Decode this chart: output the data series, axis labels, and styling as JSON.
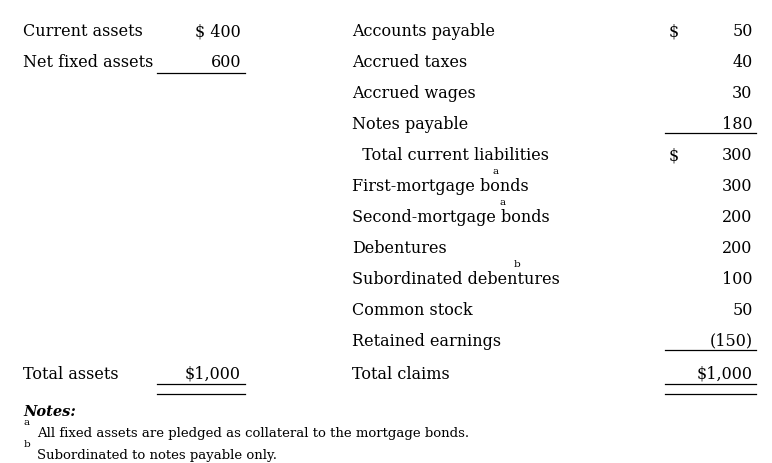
{
  "background_color": "#ffffff",
  "left_section": {
    "items": [
      {
        "label": "Current assets",
        "value": "$ 400"
      },
      {
        "label": "Net fixed assets",
        "value": "600"
      }
    ],
    "total_label": "Total assets",
    "total_value": "$1,000"
  },
  "right_section": {
    "items": [
      {
        "label": "Accounts payable",
        "value": "50",
        "dollar": true,
        "underline": false,
        "superscript": ""
      },
      {
        "label": "Accrued taxes",
        "value": "40",
        "dollar": false,
        "underline": false,
        "superscript": ""
      },
      {
        "label": "Accrued wages",
        "value": "30",
        "dollar": false,
        "underline": false,
        "superscript": ""
      },
      {
        "label": "Notes payable",
        "value": "180",
        "dollar": false,
        "underline": true,
        "superscript": ""
      },
      {
        "label": "  Total current liabilities",
        "value": "300",
        "dollar": true,
        "underline": false,
        "superscript": ""
      },
      {
        "label": "First-mortgage bonds",
        "value": "300",
        "dollar": false,
        "underline": false,
        "superscript": "a"
      },
      {
        "label": "Second-mortgage bonds",
        "value": "200",
        "dollar": false,
        "underline": false,
        "superscript": "a"
      },
      {
        "label": "Debentures",
        "value": "200",
        "dollar": false,
        "underline": false,
        "superscript": ""
      },
      {
        "label": "Subordinated debentures",
        "value": "100",
        "dollar": false,
        "underline": false,
        "superscript": "b"
      },
      {
        "label": "Common stock",
        "value": "50",
        "dollar": false,
        "underline": false,
        "superscript": ""
      },
      {
        "label": "Retained earnings",
        "value": "(150)",
        "dollar": false,
        "underline": true,
        "superscript": ""
      }
    ],
    "total_label": "Total claims",
    "total_value": "$1,000"
  },
  "notes": [
    {
      "text": "Notes:",
      "bold": true,
      "italic": true,
      "prefix": ""
    },
    {
      "text": "All fixed assets are pledged as collateral to the mortgage bonds.",
      "bold": false,
      "italic": false,
      "prefix": "a"
    },
    {
      "text": "Subordinated to notes payable only.",
      "bold": false,
      "italic": false,
      "prefix": "b"
    }
  ],
  "font_family": "serif",
  "font_size": 11.5
}
